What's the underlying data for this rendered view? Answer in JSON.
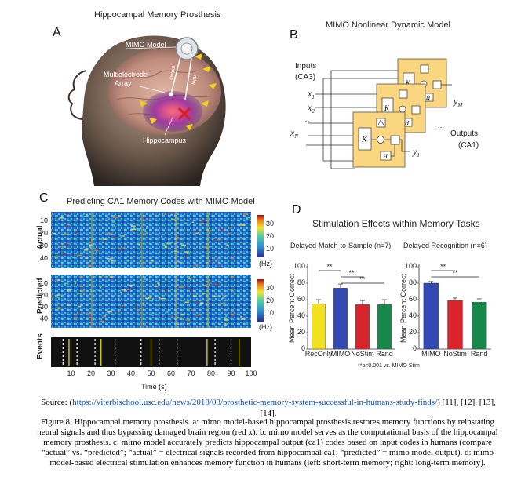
{
  "figure": {
    "panel_a": {
      "letter": "A",
      "title": "Hippocampal Memory Prosthesis",
      "labels": {
        "mimo": "MIMO Model",
        "electrode": "Multielectrode",
        "array": "Array",
        "hippocampus": "Hippocampus",
        "output": "Output",
        "input": "Input"
      }
    },
    "panel_b": {
      "letter": "B",
      "title": "MIMO Nonlinear Dynamic Model",
      "inputs_label": "Inputs",
      "inputs_sub": "(CA3)",
      "outputs_label": "Outputs",
      "outputs_sub": "(CA1)",
      "x1": "x",
      "x1_sub": "1",
      "x2": "x",
      "x2_sub": "2",
      "xn": "x",
      "xn_sub": "N",
      "ym": "y",
      "ym_sub": "M",
      "y1": "y",
      "y1_sub": "1",
      "dots_in": "...",
      "dots_out": "...",
      "k": "K",
      "h": "H"
    },
    "panel_c": {
      "letter": "C",
      "title": "Predicting CA1 Memory Codes with MIMO Model",
      "actual": "Actual",
      "predicted": "Predicted",
      "events": "Events",
      "y_ticks": [
        "10",
        "20",
        "30",
        "40"
      ],
      "x_ticks": [
        "10",
        "20",
        "30",
        "40",
        "50",
        "60",
        "70",
        "80",
        "90",
        "100"
      ],
      "xlabel": "Time (s)",
      "cbar_ticks": [
        "30",
        "20",
        "10"
      ],
      "cbar_unit": "(Hz)"
    },
    "panel_d": {
      "letter": "D",
      "title": "Stimulation Effects within Memory Tasks",
      "footnote": "**p<0.001 vs. MIMO Stim",
      "sig": "**"
    }
  },
  "chart_data": [
    {
      "type": "bar",
      "title": "Delayed-Match-to-Sample (n=7)",
      "ylabel": "Mean Percent Correct",
      "ylim": [
        0,
        100
      ],
      "yticks": [
        0,
        20,
        40,
        60,
        80,
        100
      ],
      "categories": [
        "RecOnly",
        "MIMO",
        "NoStim",
        "Rand"
      ],
      "values": [
        55,
        74,
        54,
        54
      ],
      "errors": [
        5,
        5,
        5,
        6
      ],
      "colors": [
        "#f3e11f",
        "#3149b0",
        "#d8242a",
        "#16884a"
      ]
    },
    {
      "type": "bar",
      "title": "Delayed Recognition (n=6)",
      "ylabel": "Mean Percent Correct",
      "ylim": [
        0,
        100
      ],
      "yticks": [
        0,
        20,
        40,
        60,
        80,
        100
      ],
      "categories": [
        "MIMO",
        "NoStim",
        "Rand"
      ],
      "values": [
        80,
        59,
        57
      ],
      "errors": [
        2,
        3,
        4
      ],
      "colors": [
        "#3149b0",
        "#d8242a",
        "#16884a"
      ]
    }
  ],
  "source": {
    "prefix": "Source: (",
    "url": "https://viterbischool.usc.edu/news/2018/03/prosthetic-memory-system-successful-in-humans-study-finds/",
    "suffix": ") [11], [12], [13], [14]."
  },
  "caption": "Figure 8. Hippocampal memory prosthesis. a: mimo model-based hippocampal prosthesis restores memory functions by reinstating neural signals and thus bypassing damaged brain region (red x). b: mimo model serves as the computational basis of the hippocampal memory prosthesis. c: mimo model accurately predicts hippocampal output (ca1) codes based on input codes in humans (compare “actual” vs. “predicted”; “actual” = electrical signals recorded from hippocampal ca1; “predicted” = mimo model output). d: mimo model-based electrical stimulation enhances memory function in humans (left: short-term memory; right: long-term memory)."
}
